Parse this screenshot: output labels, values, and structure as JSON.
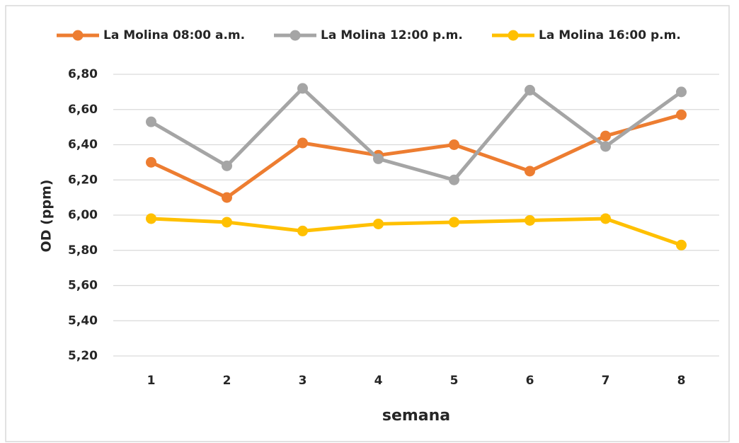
{
  "chart_data": {
    "type": "line",
    "xlabel": "semana",
    "ylabel": "OD (ppm)",
    "categories": [
      "1",
      "2",
      "3",
      "4",
      "5",
      "6",
      "7",
      "8"
    ],
    "series": [
      {
        "name": "La Molina 08:00 a.m.",
        "color": "#ED7D31",
        "values": [
          6.3,
          6.1,
          6.41,
          6.34,
          6.4,
          6.25,
          6.45,
          6.57
        ]
      },
      {
        "name": "La Molina 12:00 p.m.",
        "color": "#A5A5A5",
        "values": [
          6.53,
          6.28,
          6.72,
          6.32,
          6.2,
          6.71,
          6.39,
          6.7
        ]
      },
      {
        "name": "La Molina 16:00 p.m.",
        "color": "#FFC000",
        "values": [
          5.98,
          5.96,
          5.91,
          5.95,
          5.96,
          5.97,
          5.98,
          5.83
        ]
      }
    ],
    "ylim": [
      5.2,
      6.8
    ],
    "yticks": [
      {
        "value": 5.2,
        "label": "5,20"
      },
      {
        "value": 5.4,
        "label": "5,40"
      },
      {
        "value": 5.6,
        "label": "5,60"
      },
      {
        "value": 5.8,
        "label": "5,80"
      },
      {
        "value": 6.0,
        "label": "6,00"
      },
      {
        "value": 6.2,
        "label": "6,20"
      },
      {
        "value": 6.4,
        "label": "6,40"
      },
      {
        "value": 6.6,
        "label": "6,60"
      },
      {
        "value": 6.8,
        "label": "6,80"
      }
    ],
    "grid": true,
    "legend": "top"
  }
}
